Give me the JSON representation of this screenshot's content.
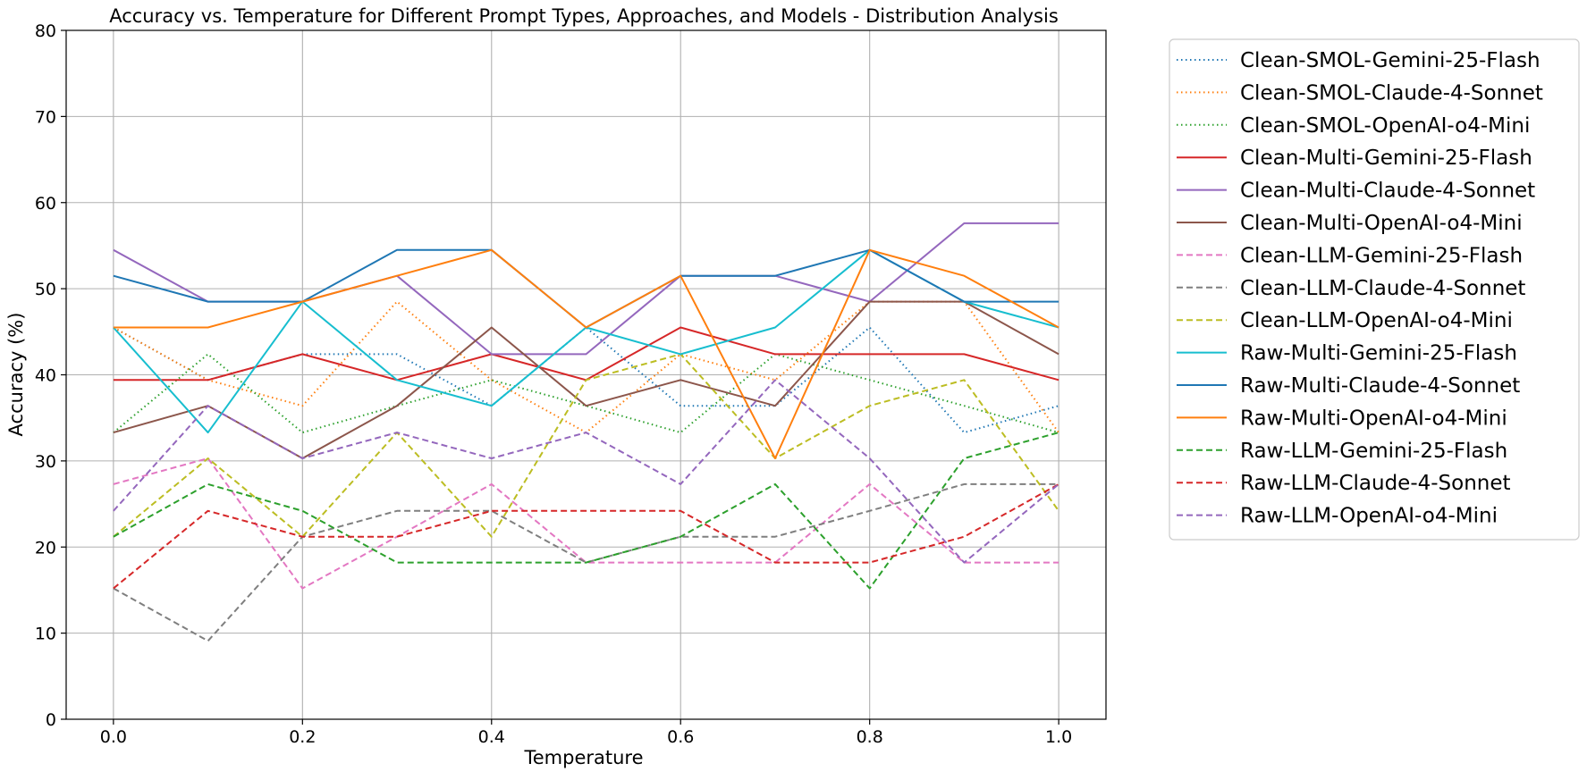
{
  "chart_data": {
    "type": "line",
    "title": "Accuracy vs. Temperature for Different Prompt Types, Approaches, and Models - Distribution Analysis",
    "xlabel": "Temperature",
    "ylabel": "Accuracy (%)",
    "xlim": [
      -0.05,
      1.05
    ],
    "ylim": [
      0,
      80
    ],
    "xticks": [
      0.0,
      0.2,
      0.4,
      0.6,
      0.8,
      1.0
    ],
    "xtick_labels": [
      "0.0",
      "0.2",
      "0.4",
      "0.6",
      "0.8",
      "1.0"
    ],
    "yticks": [
      0,
      10,
      20,
      30,
      40,
      50,
      60,
      70,
      80
    ],
    "ytick_labels": [
      "0",
      "10",
      "20",
      "30",
      "40",
      "50",
      "60",
      "70",
      "80"
    ],
    "grid": true,
    "legend_position": "outside-right",
    "x": [
      0.0,
      0.1,
      0.2,
      0.3,
      0.4,
      0.5,
      0.6,
      0.7,
      0.8,
      0.9,
      1.0
    ],
    "series": [
      {
        "name": "Clean-SMOL-Gemini-25-Flash",
        "color": "#1f77b4",
        "style": "dotted",
        "values": [
          45.5,
          39.4,
          42.4,
          42.4,
          36.4,
          45.5,
          36.4,
          36.4,
          45.5,
          33.3,
          36.4
        ]
      },
      {
        "name": "Clean-SMOL-Claude-4-Sonnet",
        "color": "#ff7f0e",
        "style": "dotted",
        "values": [
          45.5,
          39.4,
          36.4,
          48.5,
          39.4,
          33.3,
          42.4,
          39.4,
          48.5,
          48.5,
          33.3
        ]
      },
      {
        "name": "Clean-SMOL-OpenAI-o4-Mini",
        "color": "#2ca02c",
        "style": "dotted",
        "values": [
          33.3,
          42.4,
          33.3,
          36.4,
          39.4,
          36.4,
          33.3,
          42.4,
          39.4,
          36.4,
          33.3
        ]
      },
      {
        "name": "Clean-Multi-Gemini-25-Flash",
        "color": "#d62728",
        "style": "solid",
        "values": [
          39.4,
          39.4,
          42.4,
          39.4,
          42.4,
          39.4,
          45.5,
          42.4,
          42.4,
          42.4,
          39.4
        ]
      },
      {
        "name": "Clean-Multi-Claude-4-Sonnet",
        "color": "#9467bd",
        "style": "solid",
        "values": [
          54.5,
          48.5,
          48.5,
          51.5,
          42.4,
          42.4,
          51.5,
          51.5,
          48.5,
          57.6,
          57.6
        ]
      },
      {
        "name": "Clean-Multi-OpenAI-o4-Mini",
        "color": "#8c564b",
        "style": "solid",
        "values": [
          33.3,
          36.4,
          30.3,
          36.4,
          45.5,
          36.4,
          39.4,
          36.4,
          48.5,
          48.5,
          42.4
        ]
      },
      {
        "name": "Clean-LLM-Gemini-25-Flash",
        "color": "#e377c2",
        "style": "dashed",
        "values": [
          27.3,
          30.3,
          15.2,
          21.2,
          27.3,
          18.2,
          18.2,
          18.2,
          27.3,
          18.2,
          18.2
        ]
      },
      {
        "name": "Clean-LLM-Claude-4-Sonnet",
        "color": "#7f7f7f",
        "style": "dashed",
        "values": [
          15.2,
          9.1,
          21.2,
          24.2,
          24.2,
          18.2,
          21.2,
          21.2,
          24.2,
          27.3,
          27.3
        ]
      },
      {
        "name": "Clean-LLM-OpenAI-o4-Mini",
        "color": "#bcbd22",
        "style": "dashed",
        "values": [
          21.2,
          30.3,
          21.2,
          33.3,
          21.2,
          39.4,
          42.4,
          30.3,
          36.4,
          39.4,
          24.2
        ]
      },
      {
        "name": "Raw-Multi-Gemini-25-Flash",
        "color": "#17becf",
        "style": "solid",
        "values": [
          45.5,
          33.3,
          48.5,
          39.4,
          36.4,
          45.5,
          42.4,
          45.5,
          54.5,
          48.5,
          45.5
        ]
      },
      {
        "name": "Raw-Multi-Claude-4-Sonnet",
        "color": "#1f77b4",
        "style": "solid",
        "values": [
          51.5,
          48.5,
          48.5,
          54.5,
          54.5,
          45.5,
          51.5,
          51.5,
          54.5,
          48.5,
          48.5
        ]
      },
      {
        "name": "Raw-Multi-OpenAI-o4-Mini",
        "color": "#ff7f0e",
        "style": "solid",
        "values": [
          45.5,
          45.5,
          48.5,
          51.5,
          54.5,
          45.5,
          51.5,
          30.3,
          54.5,
          51.5,
          45.5
        ]
      },
      {
        "name": "Raw-LLM-Gemini-25-Flash",
        "color": "#2ca02c",
        "style": "dashed",
        "values": [
          21.2,
          27.3,
          24.2,
          18.2,
          18.2,
          18.2,
          21.2,
          27.3,
          15.2,
          30.3,
          33.3
        ]
      },
      {
        "name": "Raw-LLM-Claude-4-Sonnet",
        "color": "#d62728",
        "style": "dashed",
        "values": [
          15.2,
          24.2,
          21.2,
          21.2,
          24.2,
          24.2,
          24.2,
          18.2,
          18.2,
          21.2,
          27.3
        ]
      },
      {
        "name": "Raw-LLM-OpenAI-o4-Mini",
        "color": "#9467bd",
        "style": "dashed",
        "values": [
          24.2,
          36.4,
          30.3,
          33.3,
          30.3,
          33.3,
          27.3,
          39.4,
          30.3,
          18.2,
          27.3
        ]
      }
    ]
  }
}
